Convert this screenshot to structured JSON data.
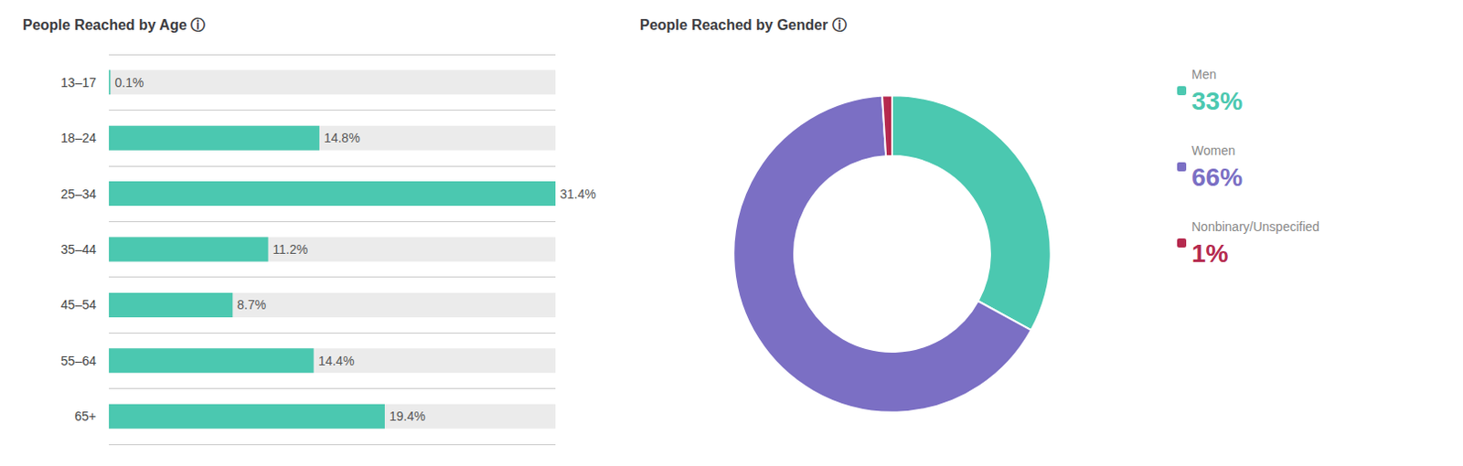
{
  "chart_data": [
    {
      "type": "bar",
      "orientation": "horizontal",
      "title": "People Reached by Age ⓘ",
      "categories": [
        "13–17",
        "18–24",
        "25–34",
        "35–44",
        "45–54",
        "55–64",
        "65+"
      ],
      "values": [
        0.1,
        14.8,
        31.4,
        11.2,
        8.7,
        14.4,
        19.4
      ],
      "value_labels": [
        "0.1%",
        "14.8%",
        "31.4%",
        "11.2%",
        "8.7%",
        "14.4%",
        "19.4%"
      ],
      "data_labels": true,
      "color": "#4bc8b0",
      "xlim": [
        0,
        31.4
      ],
      "tick_labels": "y",
      "grid": true
    },
    {
      "type": "pie",
      "title": "People Reached by Gender ⓘ",
      "categories": [
        "Men",
        "Women",
        "Nonbinary/Unspecified"
      ],
      "values": [
        33,
        66,
        1
      ],
      "value_labels": [
        "33%",
        "66%",
        "1%"
      ],
      "colors": [
        "#4bc8b0",
        "#7b6fc4",
        "#b5294e"
      ],
      "legend": "right"
    }
  ]
}
